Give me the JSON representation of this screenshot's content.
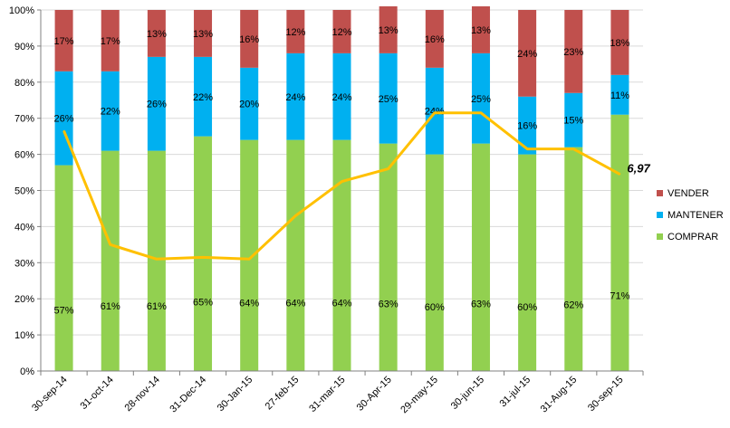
{
  "chart_data": {
    "type": "bar",
    "stacked": true,
    "categories": [
      "30-sep-14",
      "31-oct-14",
      "28-nov-14",
      "31-Dec-14",
      "30-Jan-15",
      "27-feb-15",
      "31-mar-15",
      "30-Apr-15",
      "29-may-15",
      "30-jun-15",
      "31-jul-15",
      "31-Aug-15",
      "30-sep-15"
    ],
    "series": [
      {
        "name": "COMPRAR",
        "color": "#92D050",
        "values": [
          57,
          61,
          61,
          65,
          64,
          64,
          64,
          63,
          60,
          63,
          60,
          62,
          71
        ]
      },
      {
        "name": "MANTENER",
        "color": "#00B0F0",
        "values": [
          26,
          22,
          26,
          22,
          20,
          24,
          24,
          25,
          24,
          25,
          16,
          15,
          11
        ]
      },
      {
        "name": "VENDER",
        "color": "#C0504D",
        "values": [
          17,
          17,
          13,
          13,
          16,
          12,
          12,
          13,
          16,
          13,
          24,
          23,
          18
        ]
      }
    ],
    "line": {
      "color": "#FFC000",
      "values": [
        66.5,
        35,
        31,
        31.5,
        31,
        43,
        52.5,
        56,
        71.5,
        71.5,
        61.5,
        61.5,
        54.5
      ]
    },
    "y_ticks": [
      "0%",
      "10%",
      "20%",
      "30%",
      "40%",
      "50%",
      "60%",
      "70%",
      "80%",
      "90%",
      "100%"
    ],
    "ylim": [
      0,
      100
    ],
    "annotation": "6,97",
    "legend_position": "right",
    "title": "",
    "xlabel": "",
    "ylabel": ""
  }
}
